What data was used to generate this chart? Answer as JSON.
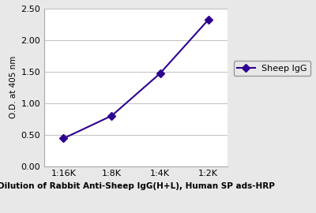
{
  "x_labels": [
    "1:16K",
    "1:8K",
    "1:4K",
    "1:2K"
  ],
  "x_values": [
    1,
    2,
    3,
    4
  ],
  "y_values": [
    0.44,
    0.8,
    1.47,
    2.32
  ],
  "line_color": "#2d0090",
  "marker": "D",
  "marker_size": 5,
  "legend_label": "Sheep IgG",
  "ylabel": "O.D. at 405 nm",
  "xlabel": "Dilution of Rabbit Anti-Sheep IgG(H+L), Human SP ads-HRP",
  "ylim": [
    0.0,
    2.5
  ],
  "yticks": [
    0.0,
    0.5,
    1.0,
    1.5,
    2.0,
    2.5
  ],
  "background_color": "#e8e8e8",
  "plot_bg_color": "#ffffff",
  "grid_color": "#c0c0c0",
  "axis_label_fontsize": 7.5,
  "tick_fontsize": 8,
  "legend_fontsize": 8
}
